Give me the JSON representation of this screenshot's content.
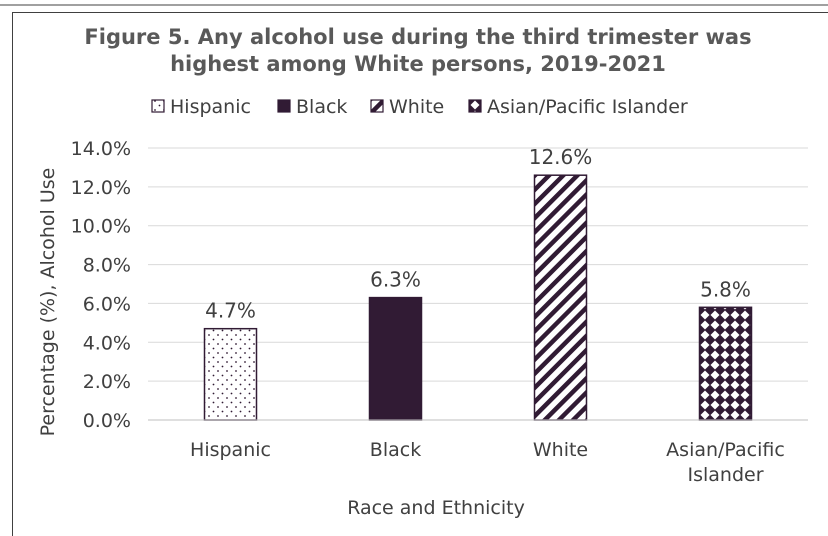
{
  "chart_data": {
    "type": "bar",
    "title": "Figure 5. Any alcohol use during the third trimester was highest among White persons, 2019-2021",
    "title_lines": [
      "Figure 5. Any alcohol use during the third trimester was",
      "highest among White persons, 2019-2021"
    ],
    "xlabel": "Race and Ethnicity",
    "ylabel": "Percentage (%), Alcohol Use",
    "categories": [
      "Hispanic",
      "Black",
      "White",
      "Asian/Pacific Islander"
    ],
    "category_label_lines": [
      [
        "Hispanic"
      ],
      [
        "Black"
      ],
      [
        "White"
      ],
      [
        "Asian/Pacific",
        "Islander"
      ]
    ],
    "values": [
      4.7,
      6.3,
      12.6,
      5.8
    ],
    "data_labels": [
      "4.7%",
      "6.3%",
      "12.6%",
      "5.8%"
    ],
    "ylim": [
      0,
      14
    ],
    "yticks": [
      0,
      2,
      4,
      6,
      8,
      10,
      12,
      14
    ],
    "ytick_labels": [
      "0.0%",
      "2.0%",
      "4.0%",
      "6.0%",
      "8.0%",
      "10.0%",
      "12.0%",
      "14.0%"
    ],
    "grid": true,
    "legend_position": "top",
    "legend": [
      {
        "label": "Hispanic",
        "pattern": "dots"
      },
      {
        "label": "Black",
        "pattern": "solid"
      },
      {
        "label": "White",
        "pattern": "diagonal-stripes"
      },
      {
        "label": "Asian/Pacific Islander",
        "pattern": "diamond-checker"
      }
    ],
    "colors": {
      "title": "#595959",
      "text": "#404040",
      "bar_dark": "#311b34",
      "gridline": "#d9d9d9",
      "axis": "#bfbfbf"
    }
  }
}
